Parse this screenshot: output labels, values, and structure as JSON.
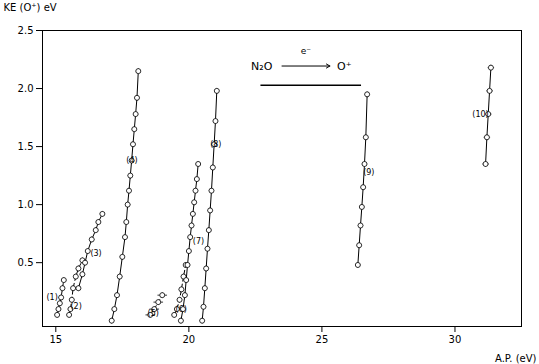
{
  "chart_data": {
    "type": "scatter",
    "xlabel": "A.P. (eV)",
    "ylabel": "KE (O⁺) eV",
    "annotations": [
      "N₂O",
      "e⁻",
      "O⁺"
    ],
    "xlim": [
      14.5,
      32.5
    ],
    "ylim": [
      -0.05,
      2.5
    ],
    "xticks": [
      15,
      20,
      25,
      30
    ],
    "yticks": [
      0.5,
      {
        "value": 1.0,
        "label": "1.0"
      },
      1.5,
      {
        "value": 2.0,
        "label": "2.0"
      },
      2.5
    ],
    "marker": "circle",
    "series": [
      {
        "name": "(1)",
        "x": [
          15.05,
          15.1,
          15.15,
          15.2,
          15.25,
          15.3
        ],
        "values": [
          0.05,
          0.1,
          0.15,
          0.2,
          0.28,
          0.35
        ],
        "xerr": 0.1,
        "yerr": 0.025,
        "line_style": "dashed",
        "label_x": 14.65,
        "label_y": 0.2
      },
      {
        "name": "(2)",
        "x": [
          15.5,
          15.55,
          15.6,
          15.65,
          15.75,
          15.85,
          16.0
        ],
        "values": [
          0.05,
          0.1,
          0.18,
          0.28,
          0.38,
          0.45,
          0.52
        ],
        "xerr": 0.1,
        "yerr": 0.025,
        "line_style": "dashed",
        "label_x": 15.55,
        "label_y": 0.12
      },
      {
        "name": "(3)",
        "x": [
          15.85,
          16.0,
          16.1,
          16.2,
          16.35,
          16.5,
          16.6,
          16.75
        ],
        "values": [
          0.28,
          0.4,
          0.5,
          0.6,
          0.7,
          0.78,
          0.85,
          0.92
        ],
        "xerr": 0.1,
        "yerr": 0.025,
        "line_style": "solid",
        "label_x": 16.3,
        "label_y": 0.58
      },
      {
        "name": "(4)",
        "x": [
          17.1,
          17.2,
          17.3,
          17.4,
          17.5,
          17.6,
          17.65,
          17.7,
          17.75,
          17.8,
          17.85,
          17.9,
          17.95,
          18.0,
          18.05,
          18.1
        ],
        "values": [
          0.0,
          0.1,
          0.22,
          0.38,
          0.55,
          0.72,
          0.85,
          1.0,
          1.12,
          1.25,
          1.38,
          1.52,
          1.65,
          1.78,
          1.92,
          2.15
        ],
        "xerr": 0.1,
        "yerr": 0.025,
        "line_style": "solid",
        "label_x": 17.65,
        "label_y": 1.38
      },
      {
        "name": "(5)",
        "x": [
          18.55,
          18.7,
          18.85,
          19.0
        ],
        "values": [
          0.05,
          0.1,
          0.16,
          0.22
        ],
        "xerr": 0.18,
        "yerr": 0.025,
        "line_style": "dashed",
        "label_x": 18.45,
        "label_y": 0.06
      },
      {
        "name": "(6)",
        "x": [
          19.45,
          19.55,
          19.65,
          19.72,
          19.8,
          19.88
        ],
        "values": [
          0.05,
          0.1,
          0.18,
          0.27,
          0.38,
          0.48
        ],
        "xerr": 0.1,
        "yerr": 0.025,
        "line_style": "dashed",
        "label_x": 19.5,
        "label_y": 0.1
      },
      {
        "name": "(7)",
        "x": [
          19.7,
          19.78,
          19.85,
          19.9,
          19.95,
          20.0,
          20.05,
          20.1,
          20.15,
          20.2,
          20.25,
          20.3,
          20.35
        ],
        "values": [
          0.0,
          0.1,
          0.22,
          0.35,
          0.48,
          0.6,
          0.72,
          0.82,
          0.92,
          1.02,
          1.12,
          1.22,
          1.35
        ],
        "xerr": 0.1,
        "yerr": 0.025,
        "line_style": "solid",
        "label_x": 20.15,
        "label_y": 0.68
      },
      {
        "name": "(8)",
        "x": [
          20.5,
          20.55,
          20.6,
          20.65,
          20.7,
          20.75,
          20.8,
          20.85,
          20.9,
          20.95,
          21.0,
          21.05
        ],
        "values": [
          0.0,
          0.12,
          0.28,
          0.45,
          0.62,
          0.78,
          0.95,
          1.12,
          1.32,
          1.52,
          1.72,
          1.98
        ],
        "xerr": 0.1,
        "yerr": 0.025,
        "line_style": "solid",
        "label_x": 20.8,
        "label_y": 1.52
      },
      {
        "name": "(9)",
        "x": [
          26.35,
          26.4,
          26.45,
          26.5,
          26.55,
          26.6,
          26.65,
          26.7
        ],
        "values": [
          0.48,
          0.65,
          0.82,
          0.98,
          1.15,
          1.35,
          1.58,
          1.95
        ],
        "xerr": 0.1,
        "yerr": 0.025,
        "line_style": "solid",
        "label_x": 26.55,
        "label_y": 1.28
      },
      {
        "name": "(10)",
        "x": [
          31.15,
          31.2,
          31.25,
          31.3,
          31.35
        ],
        "values": [
          1.35,
          1.58,
          1.78,
          1.98,
          2.18
        ],
        "xerr": 0.12,
        "yerr": 0.025,
        "line_style": "solid",
        "label_x": 30.65,
        "label_y": 1.78
      }
    ]
  }
}
